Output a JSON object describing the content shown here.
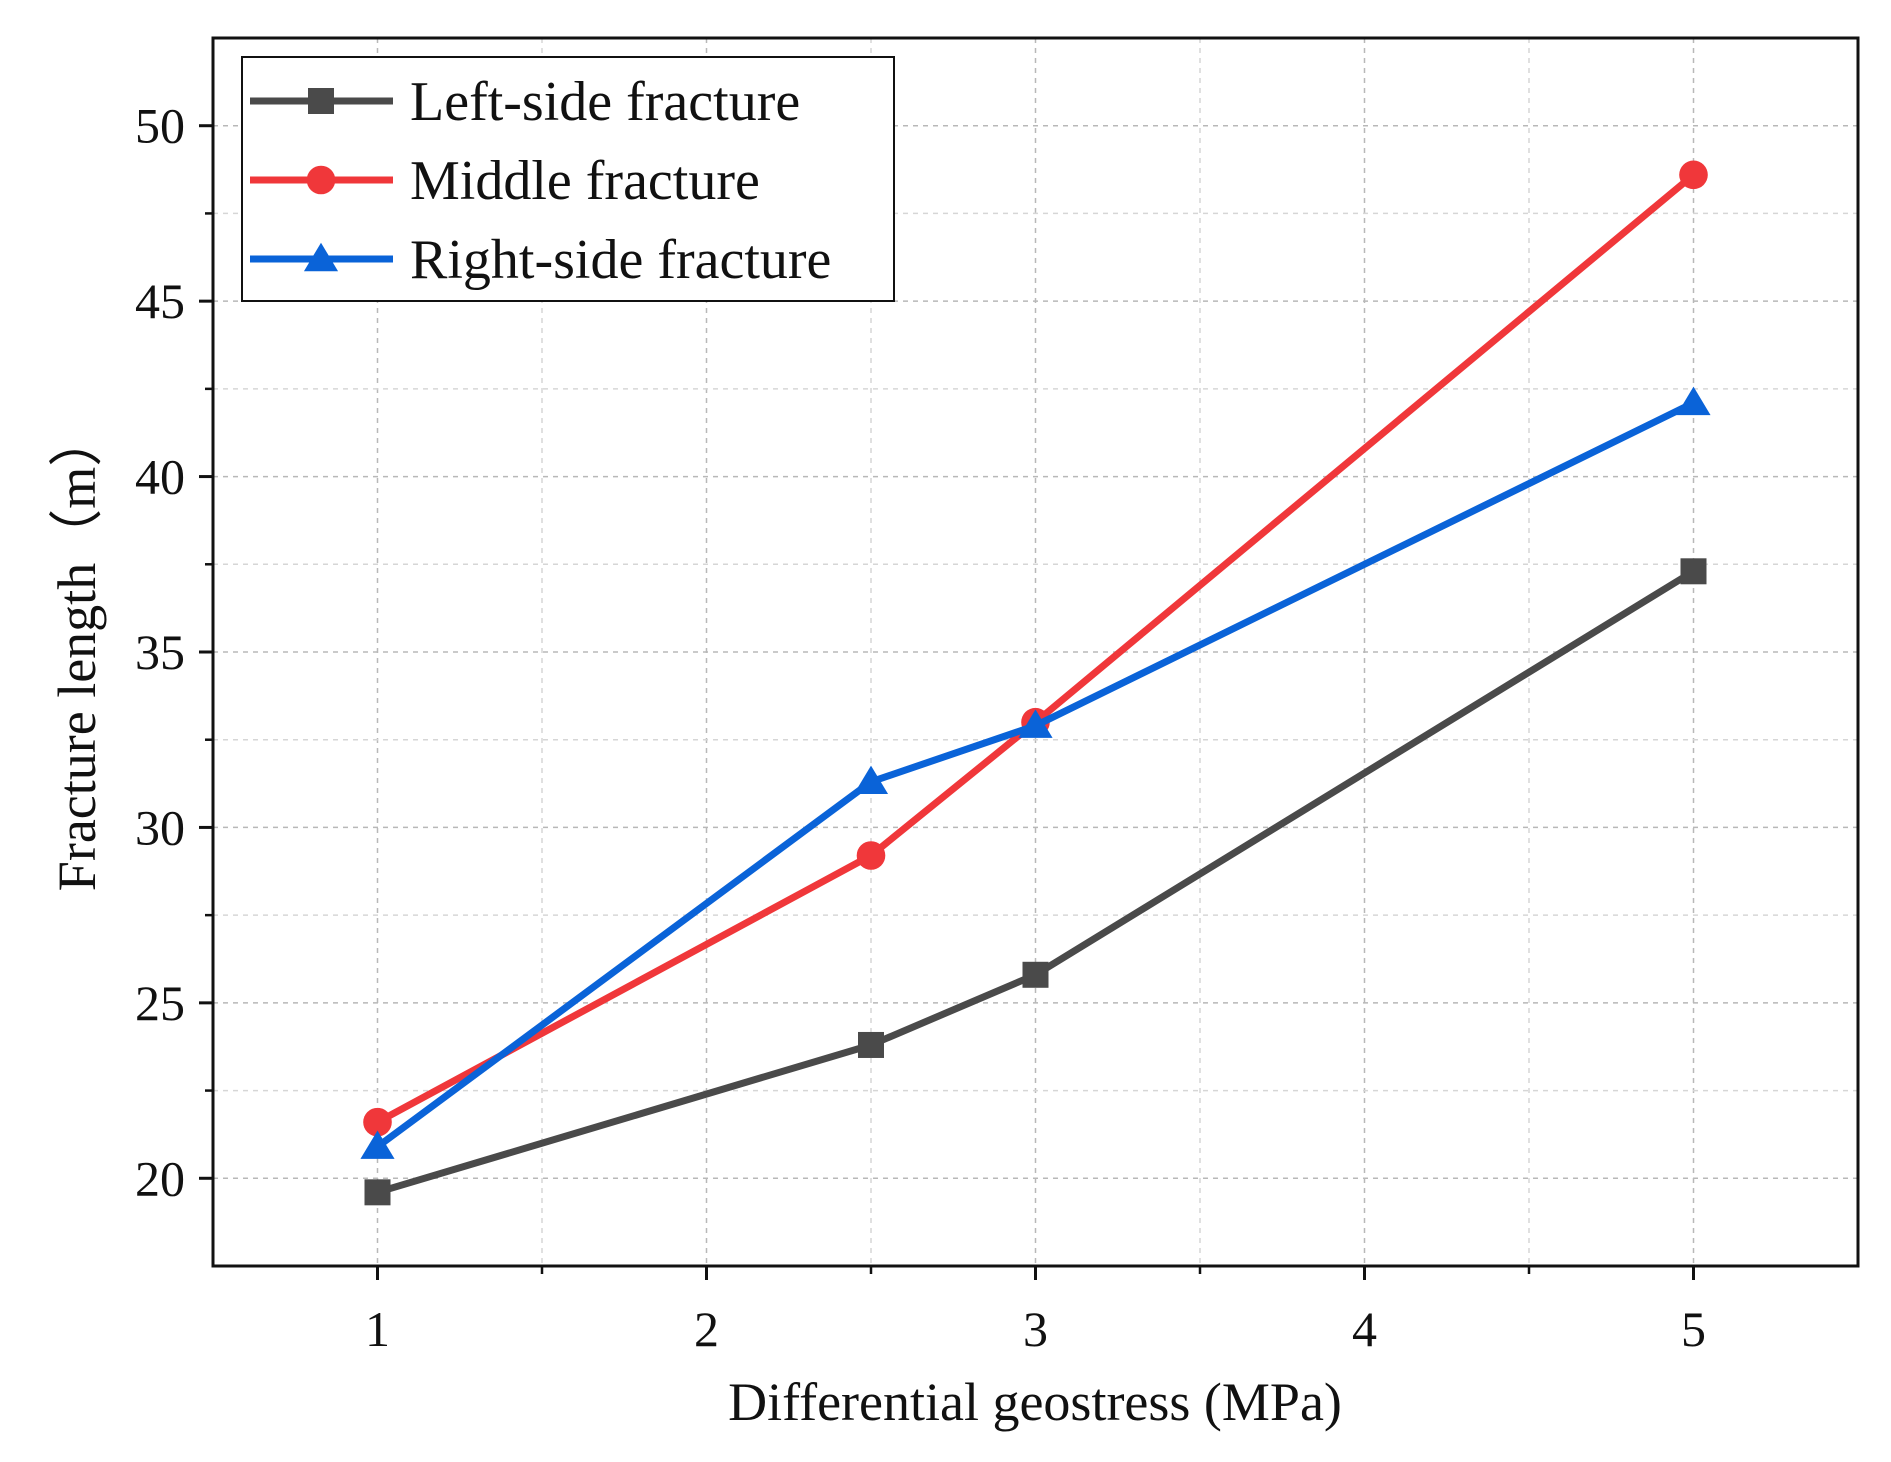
{
  "chart_data": {
    "type": "line",
    "title": "",
    "xlabel": "Differential geostress (MPa)",
    "ylabel": "Fracture length（m）",
    "xlim": [
      0.5,
      5.5
    ],
    "ylim": [
      17.5,
      52.5
    ],
    "x_ticks": [
      1,
      2,
      3,
      4,
      5
    ],
    "x_tick_labels": [
      "1",
      "2",
      "3",
      "4",
      "5"
    ],
    "y_ticks": [
      20,
      25,
      30,
      35,
      40,
      45,
      50
    ],
    "y_tick_labels": [
      "20",
      "25",
      "30",
      "35",
      "40",
      "45",
      "50"
    ],
    "grid": true,
    "legend_position": "top-left",
    "series": [
      {
        "name": "Left-side fracture",
        "color": "#4a4a4a",
        "marker": "square",
        "x": [
          1,
          2.5,
          3,
          5
        ],
        "values": [
          19.6,
          23.8,
          25.8,
          37.3
        ]
      },
      {
        "name": "Middle fracture",
        "color": "#f0373a",
        "marker": "circle",
        "x": [
          1,
          2.5,
          3,
          5
        ],
        "values": [
          21.6,
          29.2,
          33.0,
          48.6
        ]
      },
      {
        "name": "Right-side fracture",
        "color": "#0a63d8",
        "marker": "triangle",
        "x": [
          1,
          2.5,
          3,
          5
        ],
        "values": [
          20.9,
          31.3,
          32.9,
          42.1
        ]
      }
    ]
  }
}
